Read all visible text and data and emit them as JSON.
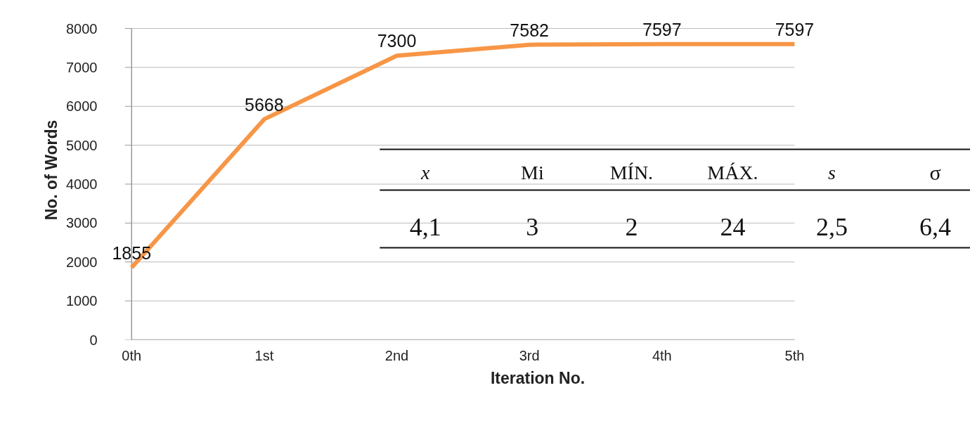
{
  "chart_data": {
    "type": "line",
    "xlabel": "Iteration No.",
    "ylabel": "No. of Words",
    "categories": [
      "0th",
      "1st",
      "2nd",
      "3rd",
      "4th",
      "5th"
    ],
    "series": [
      {
        "color": "#f79646",
        "values": [
          1855,
          5668,
          7300,
          7582,
          7597,
          7597
        ]
      }
    ],
    "ylim": [
      0,
      8000
    ],
    "yticks": [
      0,
      1000,
      2000,
      3000,
      4000,
      5000,
      6000,
      7000,
      8000
    ],
    "grid": "y",
    "data_labels": true,
    "marker": "none",
    "line_style": "solid",
    "annotations": [
      "x",
      "Mi",
      "MÍN.",
      "MÁX.",
      "s",
      "σ",
      "4,1",
      "3",
      "2",
      "24",
      "2,5",
      "6,4"
    ]
  }
}
